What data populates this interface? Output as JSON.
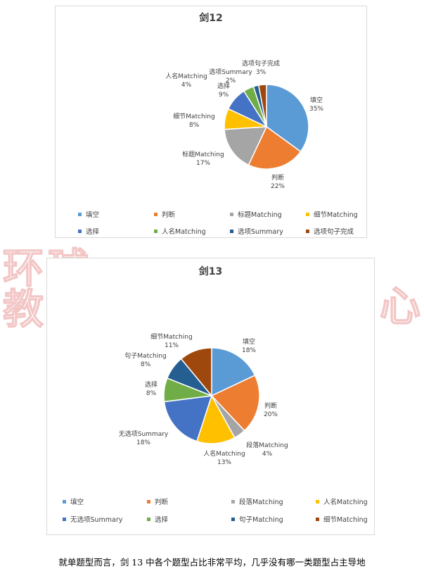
{
  "watermark": {
    "line1": "环球",
    "line2": "教",
    "tail": "心"
  },
  "caption": "就单题型而言，剑 13 中各个题型占比非常平均，几乎没有哪一类题型占主导地",
  "chart_data": [
    {
      "type": "pie",
      "title": "剑12",
      "categories": [
        "填空",
        "判断",
        "标题Matching",
        "细节Matching",
        "选择",
        "人名Matching",
        "选项Summary",
        "选项句子完成"
      ],
      "values": [
        35,
        22,
        17,
        8,
        9,
        4,
        2,
        3
      ],
      "labels": [
        "35%",
        "22%",
        "17%",
        "8%",
        "9%",
        "4%",
        "2%",
        "3%"
      ],
      "colors": [
        "#5b9bd5",
        "#ed7d31",
        "#a5a5a5",
        "#ffc000",
        "#4472c4",
        "#70ad47",
        "#255e91",
        "#9e480e"
      ],
      "legend": "bottom"
    },
    {
      "type": "pie",
      "title": "剑13",
      "categories": [
        "填空",
        "判断",
        "段落Matching",
        "人名Matching",
        "无选项Summary",
        "选择",
        "句子Matching",
        "细节Matching"
      ],
      "values": [
        18,
        20,
        4,
        13,
        18,
        8,
        8,
        11
      ],
      "labels": [
        "18%",
        "20%",
        "4%",
        "13%",
        "18%",
        "8%",
        "8%",
        "11%"
      ],
      "colors": [
        "#5b9bd5",
        "#ed7d31",
        "#a5a5a5",
        "#ffc000",
        "#4472c4",
        "#70ad47",
        "#255e91",
        "#9e480e"
      ],
      "legend": "bottom"
    }
  ]
}
